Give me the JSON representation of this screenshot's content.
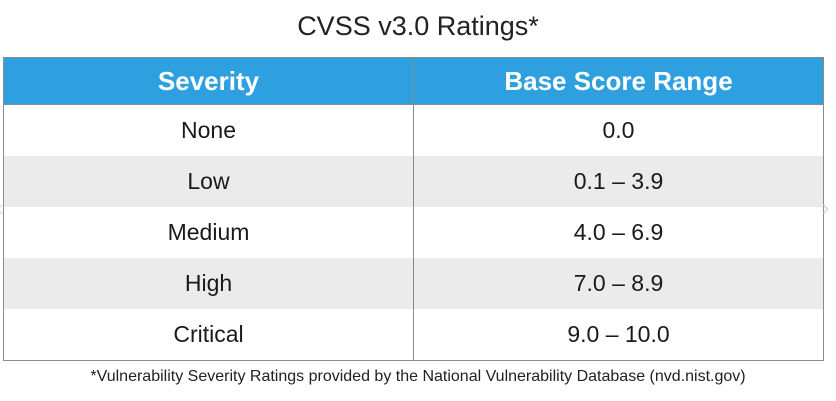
{
  "title": "CVSS v3.0 Ratings*",
  "table": {
    "headers": [
      "Severity",
      "Base Score Range"
    ],
    "rows": [
      [
        "None",
        "0.0"
      ],
      [
        "Low",
        "0.1 – 3.9"
      ],
      [
        "Medium",
        "4.0 – 6.9"
      ],
      [
        "High",
        "7.0 – 8.9"
      ],
      [
        "Critical",
        "9.0 – 10.0"
      ]
    ]
  },
  "footnote": "*Vulnerability Severity Ratings provided by the National Vulnerability Database (nvd.nist.gov)",
  "colors": {
    "header_background": "#2ea0df",
    "header_text": "#ffffff",
    "alternate_row": "#ebebeb",
    "border": "#8a8a8a"
  },
  "icons": {
    "prev": "chevron-left-icon",
    "next": "chevron-right-icon"
  }
}
